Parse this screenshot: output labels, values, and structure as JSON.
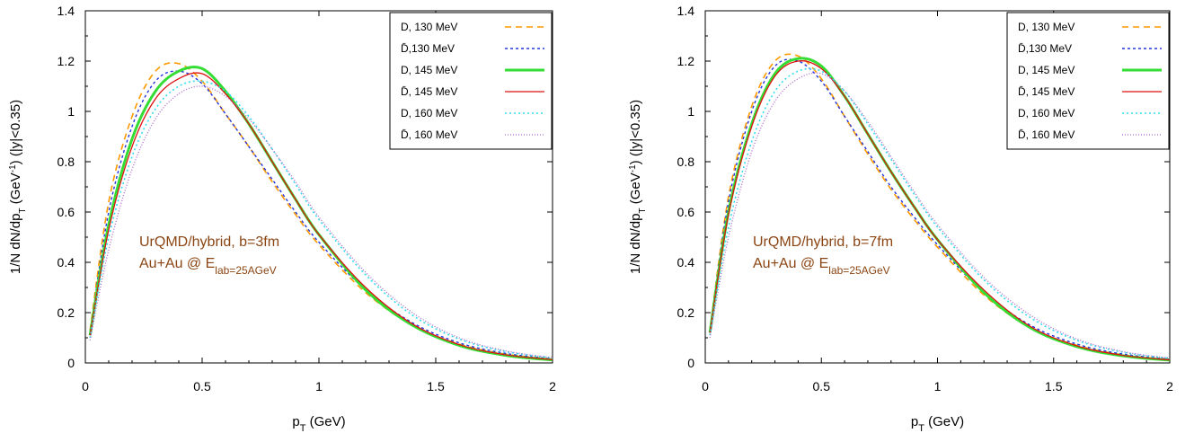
{
  "chart_data": [
    {
      "type": "line",
      "xlabel": "p_T (GeV)",
      "ylabel": "1/N dN/dp_T (GeV^-1) (|y|<0.35)",
      "xlim": [
        0,
        2
      ],
      "ylim": [
        0,
        1.4
      ],
      "xticks": [
        "0",
        "0.5",
        "1",
        "1.5",
        "2"
      ],
      "yticks": [
        "0",
        "0.2",
        "0.4",
        "0.6",
        "0.8",
        "1",
        "1.2",
        "1.4"
      ],
      "grid": false,
      "legend_position": "top-right",
      "annotations": [
        "UrQMD/hybrid, b=3fm",
        "Au+Au @ E_lab=25AGeV"
      ],
      "x": [
        0.02,
        0.1,
        0.2,
        0.3,
        0.4,
        0.5,
        0.6,
        0.7,
        0.8,
        0.9,
        1.0,
        1.2,
        1.4,
        1.6,
        1.8,
        2.0
      ],
      "series": [
        {
          "name": "D, 130 MeV",
          "color": "#FF9900",
          "dash": "7,5",
          "width": 1.6,
          "values": [
            0.13,
            0.64,
            0.98,
            1.16,
            1.19,
            1.12,
            0.99,
            0.86,
            0.72,
            0.59,
            0.47,
            0.28,
            0.15,
            0.075,
            0.035,
            0.015
          ]
        },
        {
          "name": "D̄,130 MeV",
          "color": "#2233DD",
          "dash": "3,3",
          "width": 1.4,
          "values": [
            0.12,
            0.6,
            0.94,
            1.12,
            1.16,
            1.11,
            0.99,
            0.86,
            0.73,
            0.6,
            0.48,
            0.29,
            0.16,
            0.08,
            0.038,
            0.016
          ]
        },
        {
          "name": "D, 145 MeV",
          "color": "#33DD33",
          "dash": "",
          "width": 3,
          "values": [
            0.11,
            0.55,
            0.89,
            1.08,
            1.16,
            1.17,
            1.08,
            0.95,
            0.8,
            0.65,
            0.51,
            0.29,
            0.15,
            0.07,
            0.03,
            0.012
          ]
        },
        {
          "name": "D̄, 145 MeV",
          "color": "#DD1111",
          "dash": "",
          "width": 1.3,
          "values": [
            0.11,
            0.53,
            0.86,
            1.05,
            1.13,
            1.15,
            1.07,
            0.95,
            0.8,
            0.65,
            0.51,
            0.3,
            0.155,
            0.073,
            0.032,
            0.013
          ]
        },
        {
          "name": "D, 160 MeV",
          "color": "#33DDEE",
          "dash": "2,3",
          "width": 1.6,
          "values": [
            0.1,
            0.5,
            0.82,
            1.01,
            1.1,
            1.12,
            1.08,
            0.98,
            0.85,
            0.71,
            0.57,
            0.35,
            0.19,
            0.095,
            0.045,
            0.02
          ]
        },
        {
          "name": "D̄, 160 MeV",
          "color": "#AA66CC",
          "dash": "1,2",
          "width": 1.3,
          "values": [
            0.09,
            0.45,
            0.77,
            0.97,
            1.07,
            1.1,
            1.06,
            0.97,
            0.85,
            0.72,
            0.58,
            0.36,
            0.2,
            0.1,
            0.048,
            0.021
          ]
        }
      ]
    },
    {
      "type": "line",
      "xlabel": "p_T (GeV)",
      "ylabel": "1/N dN/dp_T (GeV^-1) (|y|<0.35)",
      "xlim": [
        0,
        2
      ],
      "ylim": [
        0,
        1.4
      ],
      "xticks": [
        "0",
        "0.5",
        "1",
        "1.5",
        "2"
      ],
      "yticks": [
        "0",
        "0.2",
        "0.4",
        "0.6",
        "0.8",
        "1",
        "1.2",
        "1.4"
      ],
      "grid": false,
      "legend_position": "top-right",
      "annotations": [
        "UrQMD/hybrid, b=7fm",
        "Au+Au @ E_lab=25AGeV"
      ],
      "x": [
        0.02,
        0.1,
        0.2,
        0.3,
        0.4,
        0.5,
        0.6,
        0.7,
        0.8,
        0.9,
        1.0,
        1.2,
        1.4,
        1.6,
        1.8,
        2.0
      ],
      "series": [
        {
          "name": "D, 130 MeV",
          "color": "#FF9900",
          "dash": "7,5",
          "width": 1.6,
          "values": [
            0.13,
            0.66,
            1.02,
            1.2,
            1.22,
            1.13,
            0.98,
            0.83,
            0.69,
            0.57,
            0.46,
            0.27,
            0.14,
            0.07,
            0.032,
            0.013
          ]
        },
        {
          "name": "D̄,130 MeV",
          "color": "#2233DD",
          "dash": "3,3",
          "width": 1.4,
          "values": [
            0.13,
            0.64,
            1.0,
            1.18,
            1.2,
            1.12,
            0.98,
            0.84,
            0.7,
            0.58,
            0.47,
            0.28,
            0.15,
            0.075,
            0.035,
            0.015
          ]
        },
        {
          "name": "D, 145 MeV",
          "color": "#33DD33",
          "dash": "",
          "width": 3,
          "values": [
            0.12,
            0.6,
            0.95,
            1.15,
            1.21,
            1.18,
            1.06,
            0.91,
            0.76,
            0.62,
            0.49,
            0.28,
            0.14,
            0.065,
            0.028,
            0.011
          ]
        },
        {
          "name": "D̄, 145 MeV",
          "color": "#DD1111",
          "dash": "",
          "width": 1.3,
          "values": [
            0.12,
            0.59,
            0.94,
            1.14,
            1.2,
            1.17,
            1.06,
            0.91,
            0.76,
            0.62,
            0.49,
            0.29,
            0.145,
            0.068,
            0.03,
            0.012
          ]
        },
        {
          "name": "D, 160 MeV",
          "color": "#33DDEE",
          "dash": "2,3",
          "width": 1.6,
          "values": [
            0.11,
            0.54,
            0.88,
            1.08,
            1.16,
            1.16,
            1.08,
            0.95,
            0.81,
            0.67,
            0.54,
            0.33,
            0.18,
            0.09,
            0.042,
            0.018
          ]
        },
        {
          "name": "D̄, 160 MeV",
          "color": "#AA66CC",
          "dash": "1,2",
          "width": 1.3,
          "values": [
            0.1,
            0.5,
            0.84,
            1.04,
            1.13,
            1.15,
            1.08,
            0.96,
            0.82,
            0.68,
            0.55,
            0.34,
            0.19,
            0.095,
            0.045,
            0.019
          ]
        }
      ]
    }
  ]
}
